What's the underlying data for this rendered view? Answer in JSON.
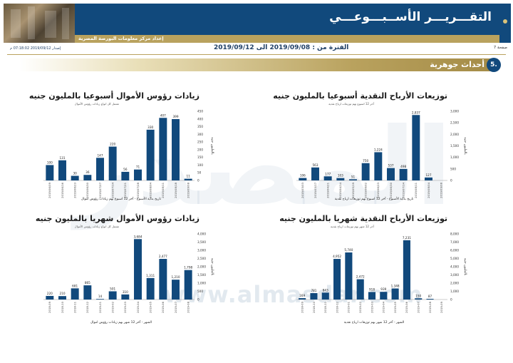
{
  "header": {
    "title": "التقـــريـــر الأســبـــوعـــي",
    "subtitle": "إعداد مركز معلومات البورصة المصرية",
    "page_label": "صفحة 7",
    "period": "الفترة من : 2019/09/08 الى 2019/09/12",
    "issued": "إصدار 2019/09/12 07:18:02 م"
  },
  "section": {
    "number": "5.",
    "label": "أحداث جوهرية"
  },
  "watermark": {
    "text": "المصدر",
    "url": "www.almasdar.com"
  },
  "colors": {
    "bar": "#11497c",
    "header_blue": "#11497c",
    "header_gold": "#b9a25e"
  },
  "charts": [
    {
      "id": "weekly-dividends",
      "title": "توزيعات الأرباح النقدية أسبوعيا بالمليون جنيه",
      "subtitle": "آخر 12 اسبوع بهم توزيعات ارباح نقدية",
      "xlabel": "تاريخ بداية الأسبوع - آخر 12 اسبوع بهم توزيعات ارباح نقدية",
      "ylabel": "بالمليون جنيه",
      "chart_data": {
        "type": "bar",
        "categories": [
          "2019/03/03",
          "2019/03/17",
          "2019/04/21",
          "2019/04/14",
          "2019/05/19",
          "2019/06/02",
          "2019/06/23",
          "2019/06/30",
          "2019/07/14",
          "2019/08/11",
          "2019/08/04",
          "2019/09/08"
        ],
        "values": [
          106,
          563,
          177,
          103,
          51,
          750,
          1224,
          537,
          498,
          2837,
          127,
          0
        ],
        "value_labels": [
          "106",
          "563",
          "177",
          "103",
          "51",
          "750",
          "1,224",
          "537",
          "498",
          "2,837",
          "127",
          ""
        ],
        "yticks": [
          "0",
          "500",
          "1,000",
          "1,500",
          "2,000",
          "2,500",
          "3,000"
        ],
        "ylim": [
          0,
          3000
        ]
      }
    },
    {
      "id": "weekly-capital-increases",
      "title": "زيادات رؤوس الأموال أسبوعيا بالمليون جنيه",
      "subtitle": "تشمل كل انواع زيادات رؤوس الأموال",
      "xlabel": "تاريخ بداية الأسبوع - آخر 12 اسبوع بهم زيادات رؤوس اموال",
      "ylabel": "بالمليون جنيه",
      "chart_data": {
        "type": "bar",
        "categories": [
          "2019/06/09",
          "2019/06/16",
          "2019/06/23",
          "2019/06/30",
          "2019/07/07",
          "2019/07/14",
          "2019/07/21",
          "2019/07/28",
          "2019/08/04",
          "2019/08/11",
          "2019/08/18",
          "2019/09/08"
        ],
        "values": [
          100,
          131,
          30,
          36,
          147,
          220,
          56,
          71,
          330,
          407,
          399,
          11
        ],
        "value_labels": [
          "100",
          "131",
          "30",
          "36",
          "147",
          "220",
          "56",
          "71",
          "330",
          "407",
          "399",
          "11"
        ],
        "yticks": [
          "0",
          "50",
          "100",
          "150",
          "200",
          "250",
          "300",
          "350",
          "400",
          "450"
        ],
        "ylim": [
          0,
          450
        ]
      }
    },
    {
      "id": "monthly-dividends",
      "title": "توزيعات الأرباح النقدية شهريا بالمليون جنيه",
      "subtitle": "آخر 12 شهر بهم توزيعات ارباح نقدية",
      "xlabel": "الشهر - آخر 12 شهر بهم توزيعات ارباح نقدية",
      "ylabel": "بالمليون جنيه",
      "chart_data": {
        "type": "bar",
        "categories": [
          "2018-09",
          "2018-10",
          "2018-11",
          "2018-12",
          "2019-01",
          "2019-02",
          "2019-03",
          "2019-04",
          "2019-05",
          "2019-06",
          "2019-07",
          "2019-08",
          "2019-09"
        ],
        "values": [
          169,
          781,
          843,
          4952,
          5740,
          2472,
          918,
          939,
          1348,
          7231,
          150,
          87,
          0
        ],
        "value_labels": [
          "169",
          "781",
          "843",
          "4,952",
          "5,740",
          "2,472",
          "918",
          "939",
          "1,348",
          "7,231",
          "150",
          "87",
          ""
        ],
        "yticks": [
          "0",
          "1,000",
          "2,000",
          "3,000",
          "4,000",
          "5,000",
          "6,000",
          "7,000",
          "8,000"
        ],
        "ylim": [
          0,
          8000
        ]
      }
    },
    {
      "id": "monthly-capital-increases",
      "title": "زيادات رؤوس الأموال شهريا بالمليون جنيه",
      "subtitle": "تشمل كل انواع زيادات رؤوس الأموال",
      "xlabel": "الشهر - آخر 12 شهر بهم زيادات رؤوس اموال",
      "ylabel": "بالمليون جنيه",
      "chart_data": {
        "type": "bar",
        "categories": [
          "2018-09",
          "2018-10",
          "2018-11",
          "2018-12",
          "2019-01",
          "2019-02",
          "2019-03",
          "2019-04",
          "2019-05",
          "2019-06",
          "2019-07",
          "2019-08"
        ],
        "values": [
          220,
          210,
          681,
          865,
          14,
          501,
          310,
          3684,
          1311,
          2477,
          1210,
          1798
        ],
        "value_labels": [
          "220",
          "210",
          "681",
          "865",
          "14",
          "501",
          "310",
          "3,684",
          "1,311",
          "2,477",
          "1,210",
          "1,798"
        ],
        "yticks": [
          "0",
          "500",
          "1,000",
          "1,500",
          "2,000",
          "2,500",
          "3,000",
          "3,500",
          "4,000"
        ],
        "ylim": [
          0,
          4000
        ]
      }
    }
  ]
}
